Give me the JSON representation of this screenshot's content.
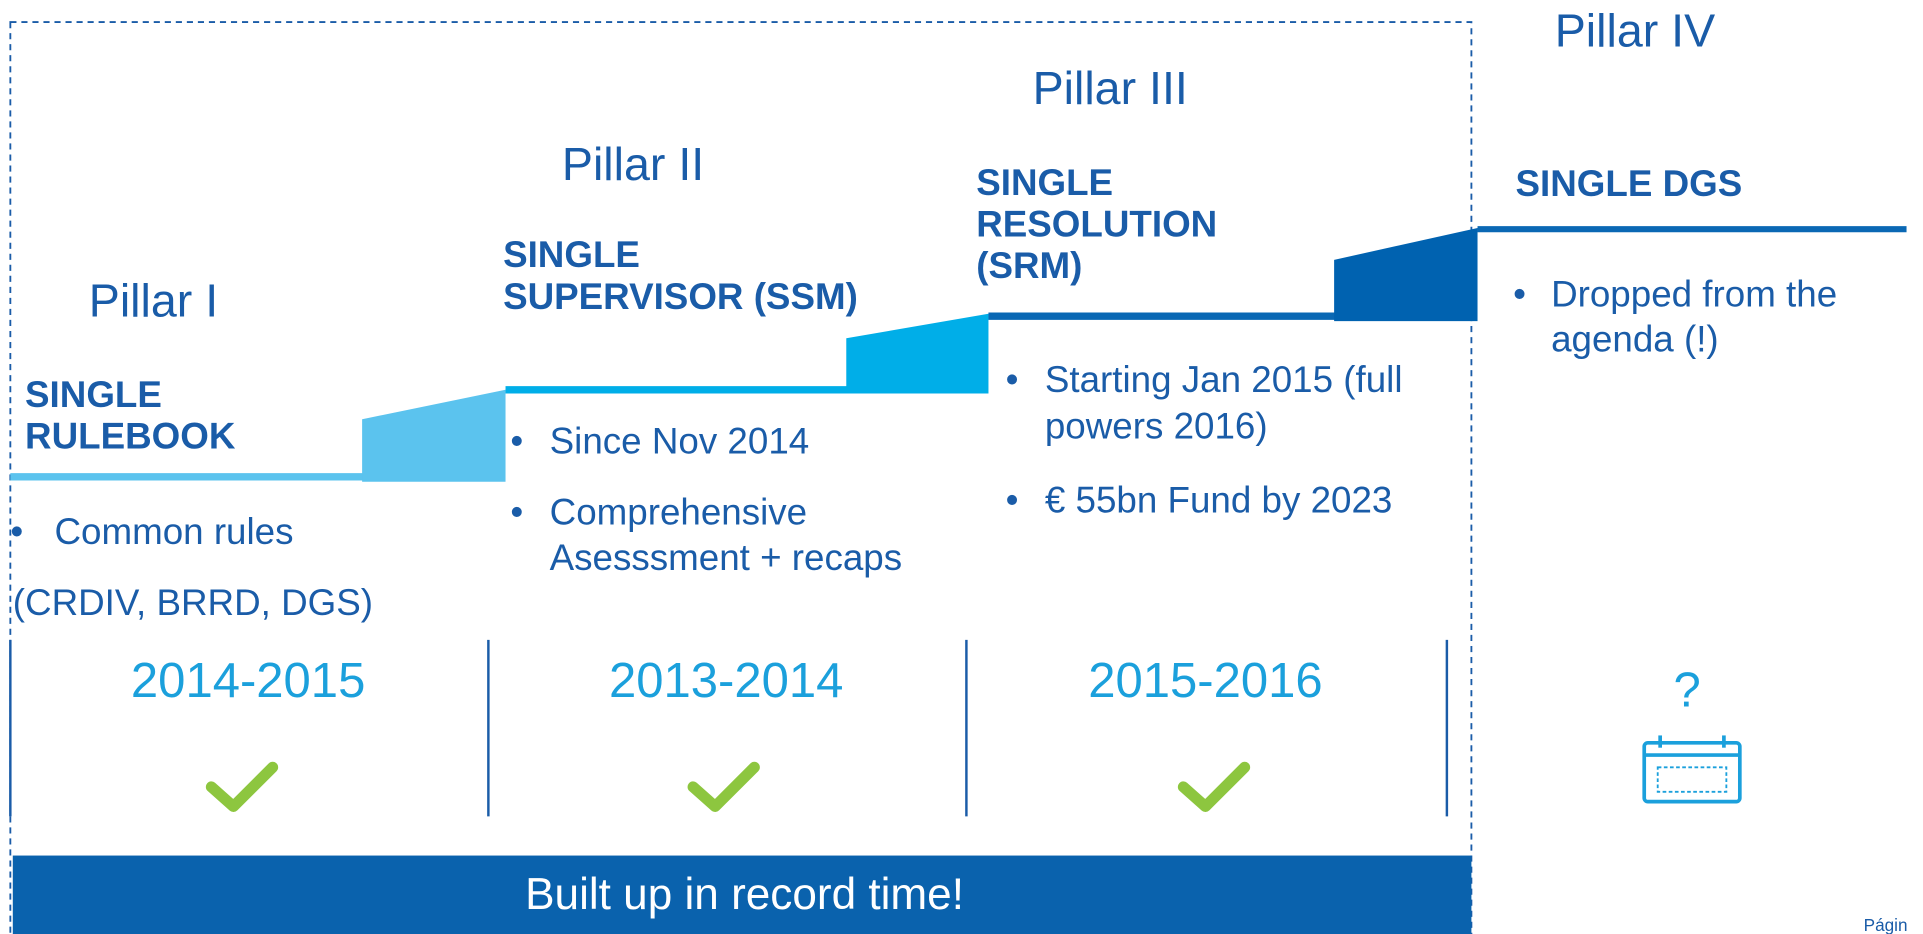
{
  "pillars": [
    {
      "label": "Pillar I",
      "title": [
        "SINGLE",
        "RULEBOOK"
      ],
      "bullets": [
        [
          "Common rules",
          "(CRDIV, BRRD, DGS)"
        ]
      ],
      "period": "2014-2015"
    },
    {
      "label": "Pillar II",
      "title": [
        "SINGLE",
        "SUPERVISOR (SSM)"
      ],
      "bullets": [
        [
          "Since Nov 2014"
        ],
        [
          "Comprehensive",
          "Asesssment + recaps"
        ]
      ],
      "period": "2013-2014"
    },
    {
      "label": "Pillar III",
      "title": [
        "SINGLE",
        "RESOLUTION",
        "(SRM)"
      ],
      "bullets": [
        [
          "Starting Jan 2015 (full",
          "powers 2016)"
        ],
        [
          "€ 55bn Fund by 2023"
        ]
      ],
      "period": "2015-2016"
    },
    {
      "label": "Pillar IV",
      "title": [
        "SINGLE DGS"
      ],
      "bullets": [
        [
          "Dropped from the",
          "agenda (!)"
        ]
      ],
      "period": "?"
    }
  ],
  "footer": "Built up in record time!",
  "page": "Págin"
}
